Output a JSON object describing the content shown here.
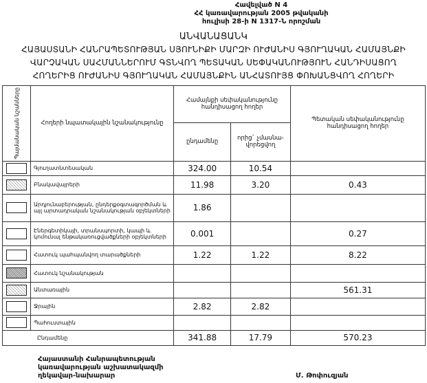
{
  "annex": [
    "Հավելված N 4",
    "ՀՀ կառավարության 2005 թվականի",
    "հուլիսի 28-ի N 1317-Ն որոշման"
  ],
  "title": [
    "ԱՆՎԱՆԱՑԱՆԿ",
    "ՀԱՅԱՍՏԱՆԻ ՀԱՆՐԱՊԵՏՈՒԹՅԱՆ ՍՅՈՒՆԻՔԻ ՄԱՐԶԻ ՈՒԺԱՆԻՍ ԳՅՈՒՂԱԿԱՆ ՀԱՄԱՅՆՔԻ",
    "ՎԱՐՉԱԿԱՆ ՍԱՀՄԱՆՆԵՐՈՒՄ ԳՏՆՎՈՂ ՊԵՏԱԿԱՆ ՍԵՓԱԿԱՆՈՒԹՅՈՒՆ ՀԱՆԴԻՍԱՑՈՂ",
    "ՀՈՂԵՐԻՑ ՈՒԺԱՆԻՍ ԳՅՈՒՂԱԿԱՆ ՀԱՄԱՅՆՔԻՆ ԱՆՀԱՏՈՒՅՑ ՓՈԽԱՆՑՎՈՂ ՀՈՂԵՐԻ"
  ],
  "table": {
    "headers": {
      "symbols": "Պայմանական նշանները",
      "purpose": "Հողերի նպատակային նշանակությունը",
      "community": "Համայնքի սեփականությունը հանդիսացող հողեր",
      "total": "ընդամենը",
      "non_privatized": "որից` չմասնա-վորեցվող",
      "state": "Պետական սեփականությունը հանդիսացող հողեր"
    },
    "rows": [
      {
        "name": "Գյուղատնտեսական",
        "total": "324.00",
        "non_privatized": "10.54",
        "state": ""
      },
      {
        "name": "Բնակավայրերի",
        "total": "11.98",
        "non_privatized": "3.20",
        "state": "0.43"
      },
      {
        "name": "Արդյունաբերության, ընդերքօգտագործման և այլ արտադրական նշանակության օբյեկտների",
        "total": "1.86",
        "non_privatized": "",
        "state": ""
      },
      {
        "name": "Էներգետիկայի, տրանսպորտի, կապի և կոմունալ ենթակառուցվածքների օբյեկտների",
        "total": "0.001",
        "non_privatized": "",
        "state": "0.27"
      },
      {
        "name": "Հատուկ պահպանվող տարածքների",
        "total": "1.22",
        "non_privatized": "1.22",
        "state": "8.22"
      },
      {
        "name": "Հատուկ նշանակության",
        "total": "",
        "non_privatized": "",
        "state": ""
      },
      {
        "name": "Անտառային",
        "total": "",
        "non_privatized": "",
        "state": "561.31"
      },
      {
        "name": "Ջրային",
        "total": "2.82",
        "non_privatized": "2.82",
        "state": ""
      },
      {
        "name": "Պահուստային",
        "total": "",
        "non_privatized": "",
        "state": ""
      }
    ],
    "sum": {
      "name": "Ընդամենը",
      "total": "341.88",
      "non_privatized": "17.79",
      "state": "570.23"
    }
  },
  "footer": {
    "position": [
      "Հայաստանի Հանրապետության",
      "կառավարության աշխատակազմի",
      "ղեկավար-նախարար"
    ],
    "signatory": "Մ. Թոփուզյան"
  }
}
